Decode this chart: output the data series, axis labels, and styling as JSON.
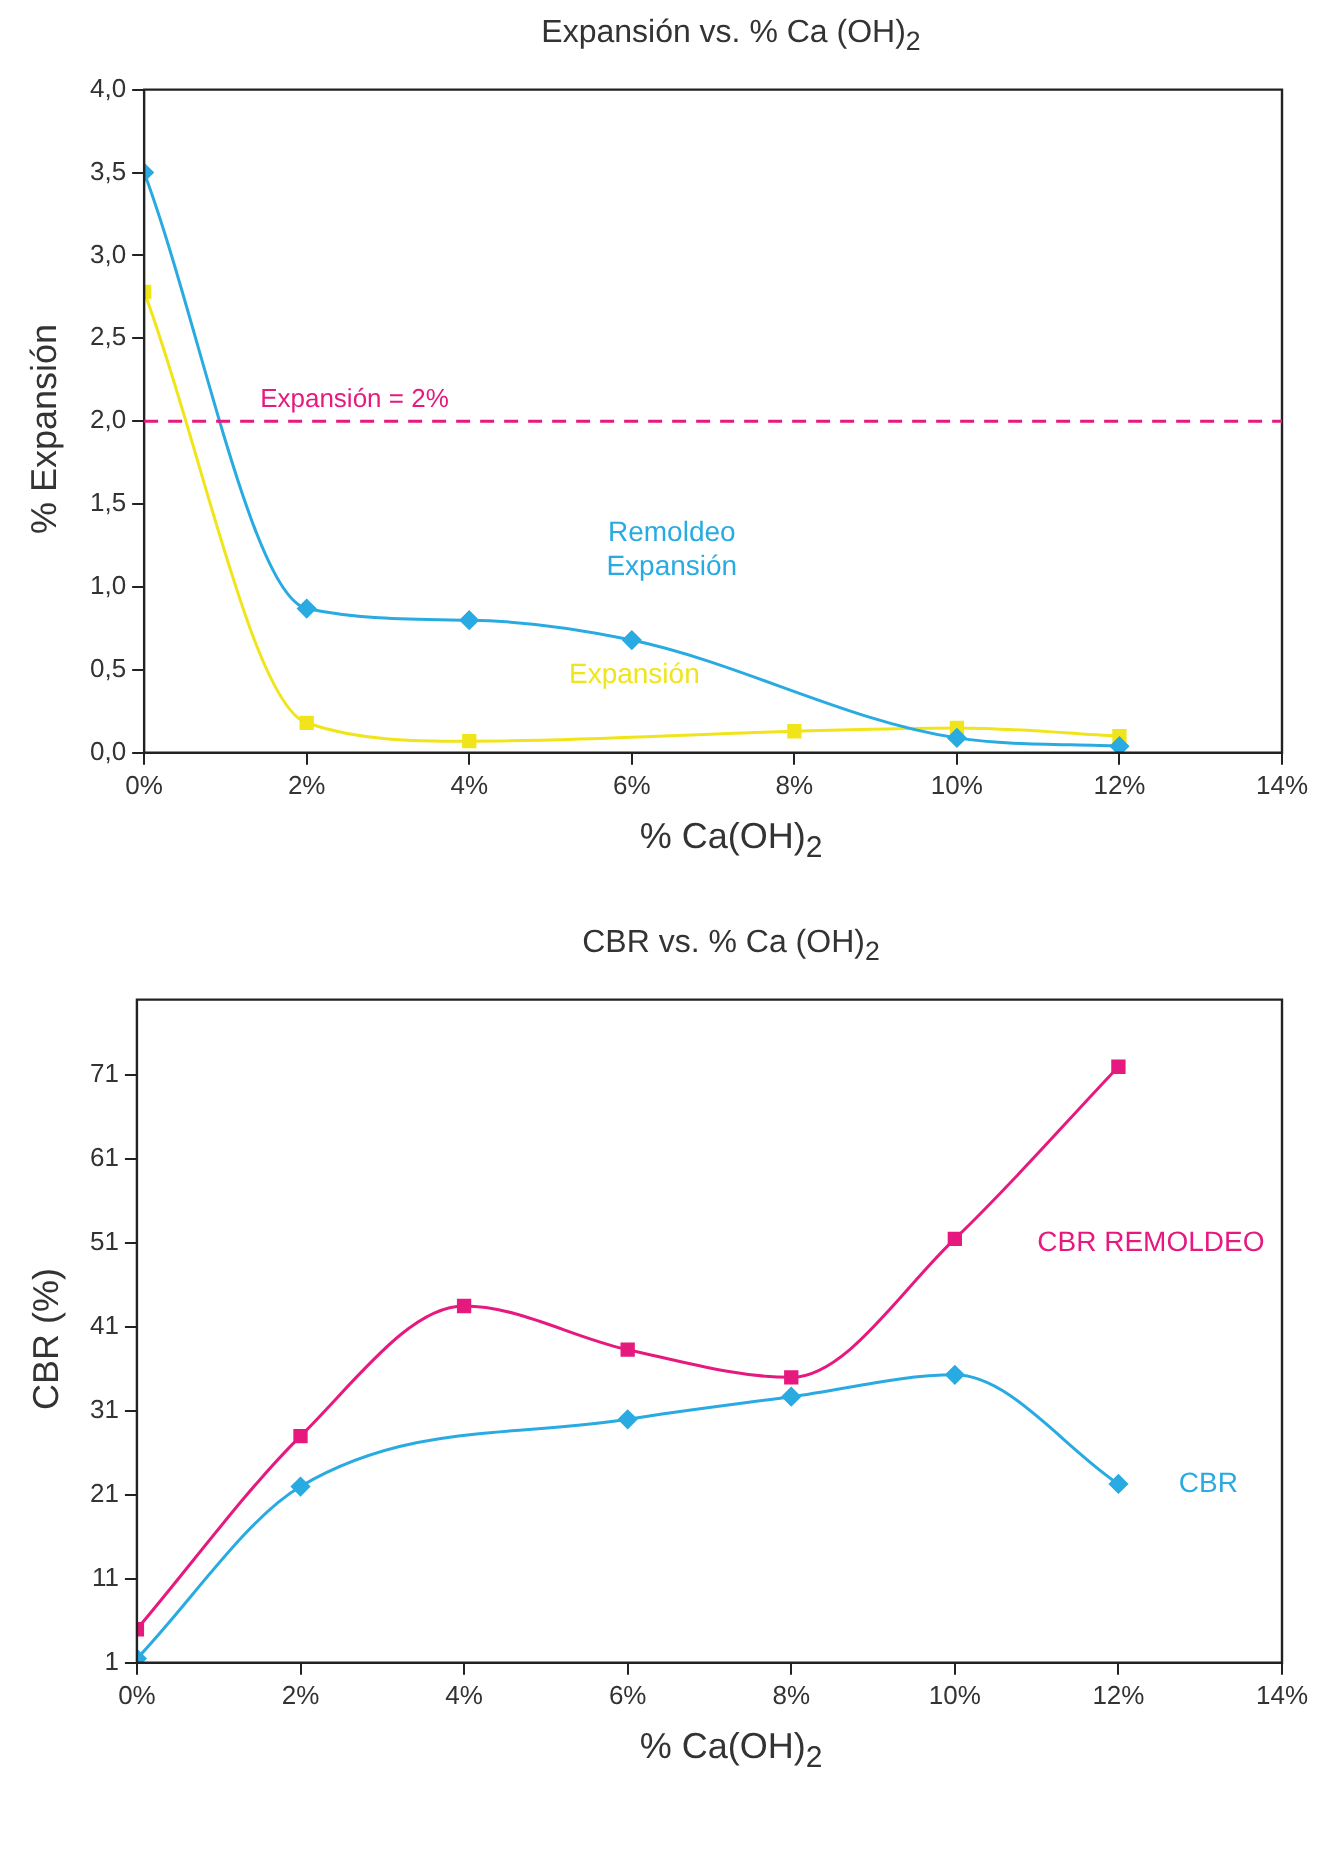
{
  "chart_data": [
    {
      "type": "line",
      "title": "Expansión vs. % Ca (OH)$_{2}$",
      "xlabel": "% Ca(OH)$_{2}$",
      "ylabel": "% Expansión",
      "xlim": [
        0,
        14
      ],
      "xticks": [
        {
          "value": 0,
          "label": "0%"
        },
        {
          "value": 2,
          "label": "2%"
        },
        {
          "value": 4,
          "label": "4%"
        },
        {
          "value": 6,
          "label": "6%"
        },
        {
          "value": 8,
          "label": "8%"
        },
        {
          "value": 10,
          "label": "10%"
        },
        {
          "value": 12,
          "label": "12%"
        },
        {
          "value": 14,
          "label": "14%"
        }
      ],
      "ylim": [
        0,
        4
      ],
      "yticks": [
        {
          "value": 0,
          "label": "0,0"
        },
        {
          "value": 0.5,
          "label": "0,5"
        },
        {
          "value": 1,
          "label": "1,0"
        },
        {
          "value": 1.5,
          "label": "1,5"
        },
        {
          "value": 2,
          "label": "2,0"
        },
        {
          "value": 2.5,
          "label": "2,5"
        },
        {
          "value": 3,
          "label": "3,0"
        },
        {
          "value": 3.5,
          "label": "3,5"
        },
        {
          "value": 4,
          "label": "4,0"
        }
      ],
      "series": [
        {
          "name": "Remoldeo Expansión",
          "color": "#29abe2",
          "marker": "diamond",
          "x": [
            0,
            2,
            4,
            6,
            10,
            12
          ],
          "values": [
            3.5,
            0.87,
            0.8,
            0.68,
            0.09,
            0.04
          ]
        },
        {
          "name": "Expansión",
          "color": "#f0e51a",
          "marker": "square",
          "x": [
            0,
            2,
            4,
            8,
            10,
            12
          ],
          "values": [
            2.78,
            0.18,
            0.07,
            0.13,
            0.15,
            0.1
          ]
        }
      ],
      "ref_lines": [
        {
          "axis": "y",
          "value": 2,
          "label": "Expansión = 2%",
          "color": "#e6197f",
          "line_style": "dashed"
        }
      ],
      "grid": false,
      "legend": false
    },
    {
      "type": "line",
      "title": "CBR vs. % Ca (OH)$_{2}$",
      "xlabel": "% Ca(OH)$_{2}$",
      "ylabel": "CBR (%)",
      "xlim": [
        0,
        14
      ],
      "xticks": [
        {
          "value": 0,
          "label": "0%"
        },
        {
          "value": 2,
          "label": "2%"
        },
        {
          "value": 4,
          "label": "4%"
        },
        {
          "value": 6,
          "label": "6%"
        },
        {
          "value": 8,
          "label": "8%"
        },
        {
          "value": 10,
          "label": "10%"
        },
        {
          "value": 12,
          "label": "12%"
        },
        {
          "value": 14,
          "label": "14%"
        }
      ],
      "ylim": [
        1,
        80
      ],
      "yticks": [
        1,
        11,
        21,
        31,
        41,
        51,
        61,
        71
      ],
      "series": [
        {
          "name": "CBR REMOLDEO",
          "color": "#e6197f",
          "marker": "square",
          "x": [
            0,
            2,
            4,
            6,
            8,
            10,
            12
          ],
          "values": [
            5,
            28,
            43.5,
            38.3,
            35,
            51.5,
            72
          ]
        },
        {
          "name": "CBR",
          "color": "#29abe2",
          "marker": "diamond",
          "x": [
            0,
            2,
            6,
            8,
            10,
            12
          ],
          "values": [
            1.5,
            22,
            30,
            32.7,
            35.3,
            22.3
          ]
        }
      ],
      "grid": false,
      "legend": false
    }
  ]
}
